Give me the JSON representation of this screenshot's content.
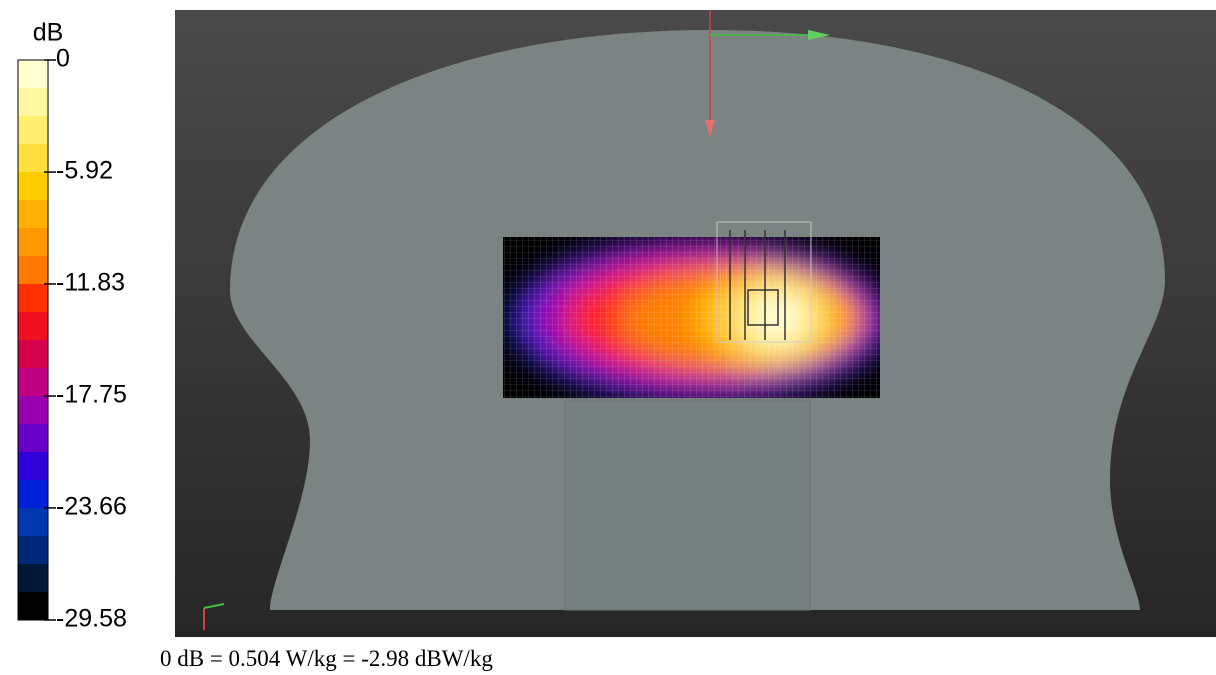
{
  "colorbar": {
    "unit": "dB",
    "ticks": [
      0,
      -5.92,
      -11.83,
      -17.75,
      -23.66,
      -29.58
    ],
    "colors": [
      "#ffffd0",
      "#fff8a0",
      "#ffee70",
      "#ffe040",
      "#ffcc00",
      "#ffb000",
      "#ff9800",
      "#ff7800",
      "#ff3000",
      "#f01020",
      "#d8004a",
      "#c00080",
      "#9800b0",
      "#6800c8",
      "#3000d8",
      "#0020d8",
      "#0038b0",
      "#002878",
      "#001838",
      "#000000"
    ]
  },
  "caption": "0 dB = 0.504 W/kg = -2.98 dBW/kg"
}
